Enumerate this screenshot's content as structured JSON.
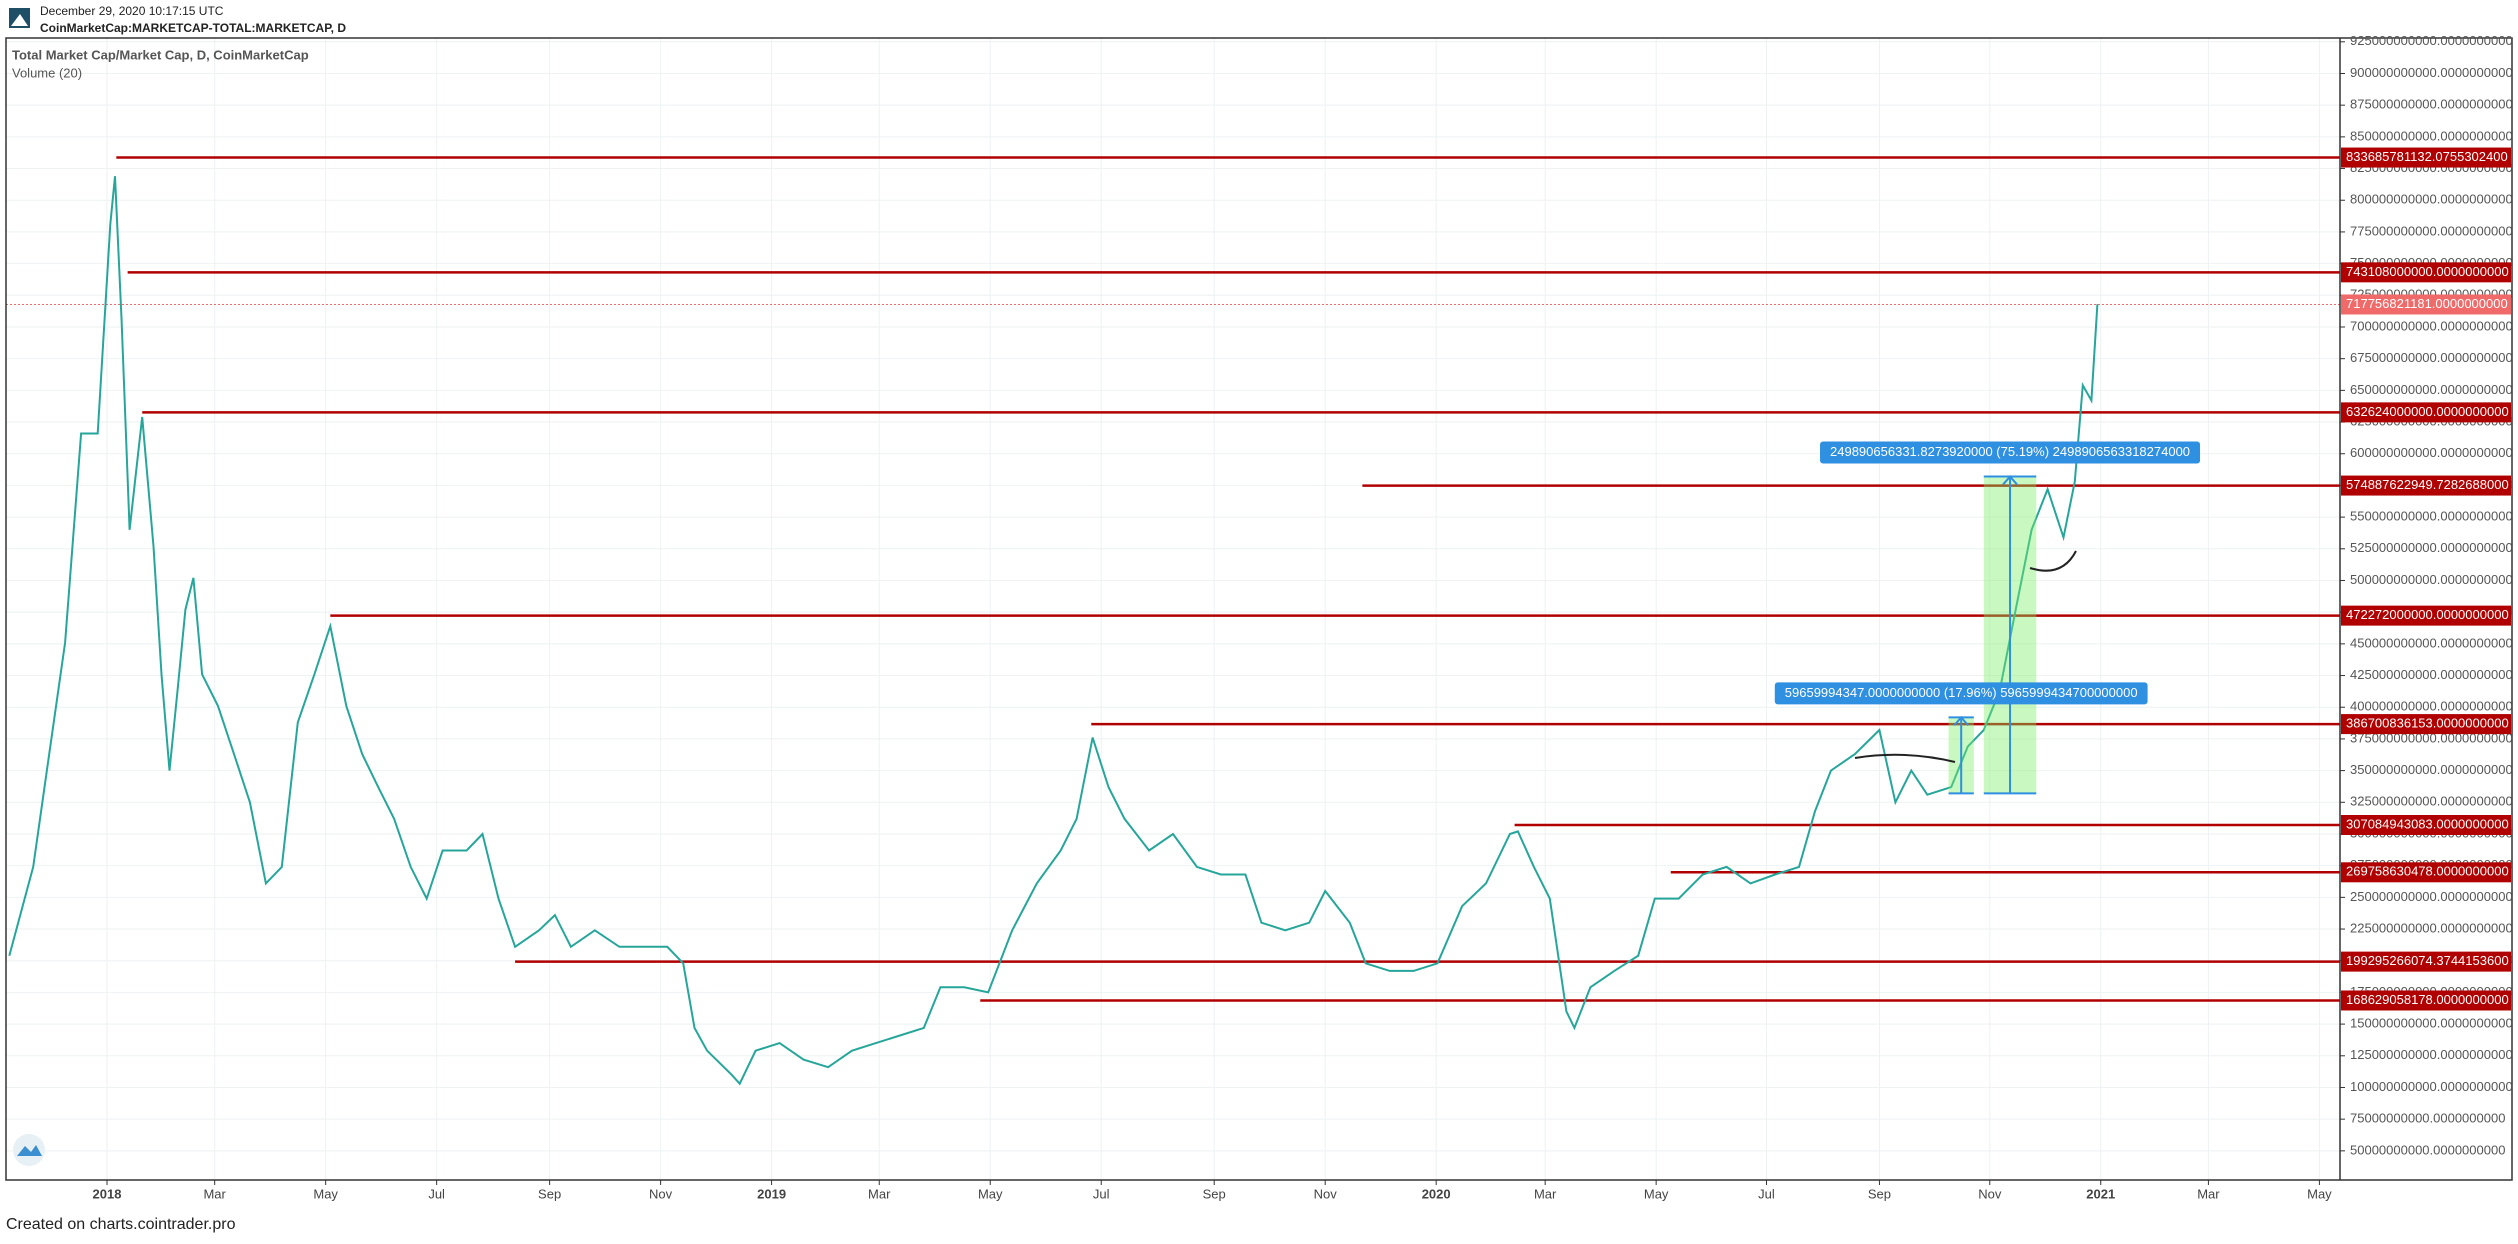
{
  "header": {
    "date": "December 29, 2020 10:17:15 UTC",
    "symbol": "CoinMarketCap:MARKETCAP-TOTAL:MARKETCAP, D"
  },
  "footer": "Created on charts.cointrader.pro",
  "chart_data": {
    "type": "line",
    "title": "Total Market Cap/Market Cap, D, CoinMarketCap",
    "subtitle": "Volume (20)",
    "grid": true,
    "xlim": [
      2017.848,
      2021.36
    ],
    "xticks": [
      {
        "value": 2018.0,
        "label": "2018"
      },
      {
        "value": 2018.162,
        "label": "Mar"
      },
      {
        "value": 2018.329,
        "label": "May"
      },
      {
        "value": 2018.496,
        "label": "Jul"
      },
      {
        "value": 2018.666,
        "label": "Sep"
      },
      {
        "value": 2018.833,
        "label": "Nov"
      },
      {
        "value": 2019.0,
        "label": "2019"
      },
      {
        "value": 2019.162,
        "label": "Mar"
      },
      {
        "value": 2019.329,
        "label": "May"
      },
      {
        "value": 2019.496,
        "label": "Jul"
      },
      {
        "value": 2019.666,
        "label": "Sep"
      },
      {
        "value": 2019.833,
        "label": "Nov"
      },
      {
        "value": 2020.0,
        "label": "2020"
      },
      {
        "value": 2020.164,
        "label": "Mar"
      },
      {
        "value": 2020.331,
        "label": "May"
      },
      {
        "value": 2020.497,
        "label": "Jul"
      },
      {
        "value": 2020.667,
        "label": "Sep"
      },
      {
        "value": 2020.833,
        "label": "Nov"
      },
      {
        "value": 2021.0,
        "label": "2021"
      },
      {
        "value": 2021.162,
        "label": "Mar"
      },
      {
        "value": 2021.329,
        "label": "May"
      }
    ],
    "ylim": [
      27000000000.0,
      928000000000.0
    ],
    "yticks": [
      {
        "value": 50000000000.0,
        "label": "50000000000.0000000000"
      },
      {
        "value": 75000000000.0,
        "label": "75000000000.0000000000"
      },
      {
        "value": 100000000000.0,
        "label": "100000000000.0000000000"
      },
      {
        "value": 125000000000.0,
        "label": "125000000000.0000000000"
      },
      {
        "value": 150000000000.0,
        "label": "150000000000.0000000000"
      },
      {
        "value": 175000000000.0,
        "label": "175000000000.0000000000"
      },
      {
        "value": 200000000000.0,
        "label": "200000000000.0000000000"
      },
      {
        "value": 225000000000.0,
        "label": "225000000000.0000000000"
      },
      {
        "value": 250000000000.0,
        "label": "250000000000.0000000000"
      },
      {
        "value": 275000000000.0,
        "label": "275000000000.0000000000"
      },
      {
        "value": 300000000000.0,
        "label": "300000000000.0000000000"
      },
      {
        "value": 325000000000.0,
        "label": "325000000000.0000000000"
      },
      {
        "value": 350000000000.0,
        "label": "350000000000.0000000000"
      },
      {
        "value": 375000000000.0,
        "label": "375000000000.0000000000"
      },
      {
        "value": 400000000000.0,
        "label": "400000000000.0000000000"
      },
      {
        "value": 425000000000.0,
        "label": "425000000000.0000000000"
      },
      {
        "value": 450000000000.0,
        "label": "450000000000.0000000000"
      },
      {
        "value": 475000000000.0,
        "label": "475000000000.0000000000"
      },
      {
        "value": 500000000000.0,
        "label": "500000000000.0000000000"
      },
      {
        "value": 525000000000.0,
        "label": "525000000000.0000000000"
      },
      {
        "value": 550000000000.0,
        "label": "550000000000.0000000000"
      },
      {
        "value": 575000000000.0,
        "label": "575000000000.0000000000"
      },
      {
        "value": 600000000000.0,
        "label": "600000000000.0000000000"
      },
      {
        "value": 625000000000.0,
        "label": "625000000000.0000000000"
      },
      {
        "value": 650000000000.0,
        "label": "650000000000.0000000000"
      },
      {
        "value": 675000000000.0,
        "label": "675000000000.0000000000"
      },
      {
        "value": 700000000000.0,
        "label": "700000000000.0000000000"
      },
      {
        "value": 725000000000.0,
        "label": "725000000000.0000000000"
      },
      {
        "value": 750000000000.0,
        "label": "750000000000.0000000000"
      },
      {
        "value": 775000000000.0,
        "label": "775000000000.0000000000"
      },
      {
        "value": 800000000000.0,
        "label": "800000000000.0000000000"
      },
      {
        "value": 825000000000.0,
        "label": "825000000000.0000000000"
      },
      {
        "value": 850000000000.0,
        "label": "850000000000.0000000000"
      },
      {
        "value": 875000000000.0,
        "label": "875000000000.0000000000"
      },
      {
        "value": 900000000000.0,
        "label": "900000000000.0000000000"
      },
      {
        "value": 925000000000.0,
        "label": "925000000000.0000000000"
      }
    ],
    "x": [
      2017.853,
      2017.889,
      2017.913,
      2017.937,
      2017.961,
      2017.986,
      2018.005,
      2018.012,
      2018.022,
      2018.034,
      2018.053,
      2018.07,
      2018.082,
      2018.094,
      2018.106,
      2018.118,
      2018.13,
      2018.143,
      2018.167,
      2018.191,
      2018.215,
      2018.239,
      2018.263,
      2018.287,
      2018.312,
      2018.336,
      2018.36,
      2018.384,
      2018.408,
      2018.432,
      2018.457,
      2018.481,
      2018.505,
      2018.541,
      2018.565,
      2018.589,
      2018.614,
      2018.65,
      2018.674,
      2018.698,
      2018.734,
      2018.771,
      2018.807,
      2018.843,
      2018.867,
      2018.884,
      2018.903,
      2018.94,
      2018.952,
      2018.976,
      2019.012,
      2019.048,
      2019.085,
      2019.121,
      2019.157,
      2019.193,
      2019.229,
      2019.254,
      2019.29,
      2019.326,
      2019.362,
      2019.399,
      2019.435,
      2019.459,
      2019.483,
      2019.507,
      2019.531,
      2019.568,
      2019.604,
      2019.64,
      2019.676,
      2019.713,
      2019.737,
      2019.773,
      2019.809,
      2019.833,
      2019.87,
      2019.894,
      2019.93,
      2019.966,
      2020.002,
      2020.039,
      2020.075,
      2020.111,
      2020.123,
      2020.147,
      2020.171,
      2020.196,
      2020.208,
      2020.232,
      2020.268,
      2020.304,
      2020.329,
      2020.365,
      2020.401,
      2020.437,
      2020.473,
      2020.51,
      2020.546,
      2020.57,
      2020.594,
      2020.63,
      2020.667,
      2020.691,
      2020.715,
      2020.739,
      2020.775,
      2020.8,
      2020.824,
      2020.848,
      2020.872,
      2020.896,
      2020.92,
      2020.944,
      2020.961,
      2020.973,
      2020.986,
      2020.995
    ],
    "series": [
      {
        "color": "#26a69a",
        "values": [
          204000000000.0,
          274000000000.0,
          363000000000.0,
          451000000000.0,
          616000000000.0,
          616000000000.0,
          781000000000.0,
          819000000000.0,
          705000000000.0,
          540000000000.0,
          629000000000.0,
          527000000000.0,
          426000000000.0,
          350000000000.0,
          413000000000.0,
          477000000000.0,
          502000000000.0,
          426000000000.0,
          401000000000.0,
          363000000000.0,
          325000000000.0,
          261000000000.0,
          274000000000.0,
          388000000000.0,
          426000000000.0,
          464000000000.0,
          401000000000.0,
          363000000000.0,
          337000000000.0,
          312000000000.0,
          274000000000.0,
          249000000000.0,
          287000000000.0,
          287000000000.0,
          300000000000.0,
          249000000000.0,
          211000000000.0,
          224000000000.0,
          236000000000.0,
          211000000000.0,
          224000000000.0,
          211000000000.0,
          211000000000.0,
          211000000000.0,
          198000000000.0,
          147000000000.0,
          129000000000.0,
          110000000000.0,
          103000000000.0,
          129000000000.0,
          135000000000.0,
          122000000000.0,
          116000000000.0,
          129000000000.0,
          135000000000.0,
          141000000000.0,
          147000000000.0,
          179000000000.0,
          179000000000.0,
          175000000000.0,
          224000000000.0,
          261000000000.0,
          287000000000.0,
          312000000000.0,
          376000000000.0,
          337000000000.0,
          312000000000.0,
          287000000000.0,
          300000000000.0,
          274000000000.0,
          268000000000.0,
          268000000000.0,
          230000000000.0,
          224000000000.0,
          230000000000.0,
          255000000000.0,
          230000000000.0,
          198000000000.0,
          192000000000.0,
          192000000000.0,
          198000000000.0,
          243000000000.0,
          261000000000.0,
          300000000000.0,
          302000000000.0,
          274000000000.0,
          249000000000.0,
          160000000000.0,
          147000000000.0,
          179000000000.0,
          192000000000.0,
          204000000000.0,
          249000000000.0,
          249000000000.0,
          268000000000.0,
          274000000000.0,
          261000000000.0,
          268000000000.0,
          274000000000.0,
          318000000000.0,
          350000000000.0,
          363000000000.0,
          382000000000.0,
          325000000000.0,
          350000000000.0,
          331000000000.0,
          337000000000.0,
          369000000000.0,
          382000000000.0,
          413000000000.0,
          477000000000.0,
          540000000000.0,
          572000000000.0,
          534000000000.0,
          578000000000.0,
          654000000000.0,
          642000000000.0,
          718000000000.0
        ]
      }
    ],
    "level_color": "#b00000",
    "levels": [
      {
        "value": 833685781132.0754,
        "label": "833685781132.0755302400",
        "start": 2018.014
      },
      {
        "value": 743108000000,
        "label": "743108000000.0000000000",
        "start": 2018.031
      },
      {
        "value": 632624000000,
        "label": "632624000000.0000000000",
        "start": 2018.053
      },
      {
        "value": 574887622949.7283,
        "label": "574887622949.7282688000",
        "start": 2019.889
      },
      {
        "value": 472272000000,
        "label": "472272000000.0000000000",
        "start": 2018.336
      },
      {
        "value": 386700836153,
        "label": "386700836153.0000000000",
        "start": 2019.481
      },
      {
        "value": 307084943083,
        "label": "307084943083.0000000000",
        "start": 2020.118
      },
      {
        "value": 269758630478,
        "label": "269758630478.0000000000",
        "start": 2020.353
      },
      {
        "value": 199295266074.37442,
        "label": "199295266074.3744153600",
        "start": 2018.614
      },
      {
        "value": 168629058178,
        "label": "168629058178.0000000000",
        "start": 2019.314
      }
    ],
    "last_price": {
      "value": 717756821181,
      "label": "717756821181.0000000000",
      "color": "#f06a6a"
    },
    "annotations": [
      {
        "label": "59659994347.0000000000 (17.96%) 5965999434700000000",
        "x0": 2020.771,
        "x1": 2020.809,
        "y0": 332000000000.0,
        "y1": 392000000000.0
      },
      {
        "label": "249890656331.8273920000 (75.19%) 2498906563318274000",
        "x0": 2020.824,
        "x1": 2020.903,
        "y0": 332000000000.0,
        "y1": 582000000000.0
      }
    ]
  }
}
